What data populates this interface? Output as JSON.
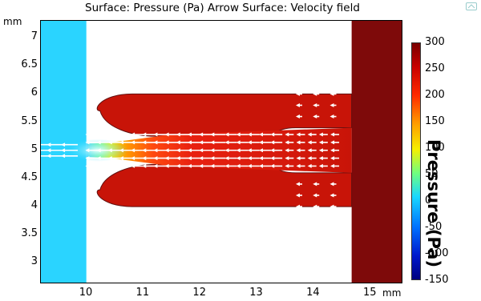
{
  "title": "Surface: Pressure (Pa)  Arrow Surface: Velocity field",
  "x_axis": {
    "unit": "mm",
    "range": [
      9.2,
      15.55
    ],
    "ticks": [
      "10",
      "11",
      "12",
      "13",
      "14",
      "15"
    ]
  },
  "y_axis": {
    "unit": "mm",
    "range": [
      2.65,
      7.3
    ],
    "ticks": [
      "7",
      "6.5",
      "6",
      "5.5",
      "5",
      "4.5",
      "4",
      "3.5",
      "3"
    ]
  },
  "colorbar": {
    "title": "Pressure (Pa)",
    "range": [
      -150,
      300
    ],
    "ticks": [
      "300",
      "250",
      "200",
      "150",
      "100",
      "50",
      "0",
      "-50",
      "-100",
      "-150"
    ]
  },
  "chart_data": {
    "type": "heatmap",
    "title": "Surface: Pressure (Pa)  Arrow Surface: Velocity field",
    "quantity": "Pressure",
    "unit": "Pa",
    "xlabel": "mm",
    "ylabel": "mm",
    "xlim": [
      9.2,
      15.55
    ],
    "ylim": [
      2.65,
      7.3
    ],
    "color_range": [
      -150,
      300
    ],
    "regions": [
      {
        "name": "inlet",
        "x": [
          9.2,
          10.0
        ],
        "y": [
          2.65,
          7.3
        ],
        "pressure": 0
      },
      {
        "name": "outlet",
        "x": [
          14.67,
          15.55
        ],
        "y": [
          2.65,
          7.3
        ],
        "pressure": 300
      },
      {
        "name": "nozzle-channel",
        "x": [
          10.0,
          14.67
        ],
        "y": [
          4.6,
          5.4
        ],
        "pressure_range": [
          0,
          300
        ]
      },
      {
        "name": "upper-lobe",
        "x": [
          10.1,
          14.67
        ],
        "y": [
          5.4,
          6.0
        ],
        "pressure": 285
      },
      {
        "name": "lower-lobe",
        "x": [
          10.1,
          14.67
        ],
        "y": [
          4.0,
          4.6
        ],
        "pressure": 285
      }
    ],
    "arrows": {
      "field": "Velocity field",
      "direction": "-x",
      "color": "#ffffff"
    },
    "colors": [
      "#7a0000",
      "#c80000",
      "#ff2a00",
      "#ff9c00",
      "#f5f000",
      "#70ff7f",
      "#18d8ff",
      "#0070ff",
      "#0018cc",
      "#000080"
    ]
  }
}
